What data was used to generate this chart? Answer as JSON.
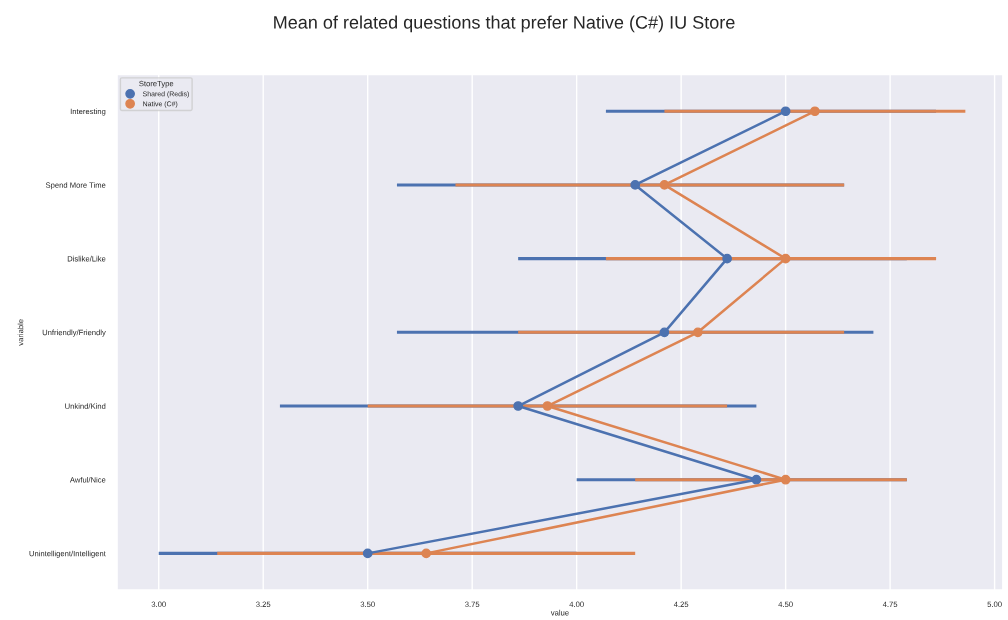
{
  "chart_data": {
    "type": "line",
    "orientation": "horizontal",
    "title": "Mean of related questions that prefer Native (C#) IU Store",
    "xlabel": "value",
    "ylabel": "variable",
    "legend_title": "StoreType",
    "legend": "top left",
    "grid": "x",
    "marker": "circle",
    "line_style": "solid",
    "categories": [
      "Interesting",
      "Spend More Time",
      "Dislike/Like",
      "Unfriendly/Friendly",
      "Unkind/Kind",
      "Awful/Nice",
      "Unintelligent/Intelligent"
    ],
    "xlim": [
      2.9,
      5.02
    ],
    "xticks": [
      {
        "value": 3.0,
        "label": "3.00"
      },
      {
        "value": 3.25,
        "label": "3.25"
      },
      {
        "value": 3.5,
        "label": "3.50"
      },
      {
        "value": 3.75,
        "label": "3.75"
      },
      {
        "value": 4.0,
        "label": "4.00"
      },
      {
        "value": 4.25,
        "label": "4.25"
      },
      {
        "value": 4.5,
        "label": "4.50"
      },
      {
        "value": 4.75,
        "label": "4.75"
      },
      {
        "value": 5.0,
        "label": "5.00"
      }
    ],
    "series": [
      {
        "name": "Shared (Redis)",
        "color": "#4c72b0",
        "values": [
          4.5,
          4.14,
          4.36,
          4.21,
          3.86,
          4.43,
          3.5
        ],
        "errors": [
          [
            4.07,
            4.86
          ],
          [
            3.57,
            4.64
          ],
          [
            3.86,
            4.79
          ],
          [
            3.57,
            4.71
          ],
          [
            3.29,
            4.43
          ],
          [
            4.0,
            4.79
          ],
          [
            3.0,
            4.0
          ]
        ]
      },
      {
        "name": "Native (C#)",
        "color": "#dd8452",
        "values": [
          4.57,
          4.21,
          4.5,
          4.29,
          3.93,
          4.5,
          3.64
        ],
        "errors": [
          [
            4.21,
            4.93
          ],
          [
            3.71,
            4.64
          ],
          [
            4.07,
            4.86
          ],
          [
            3.86,
            4.64
          ],
          [
            3.5,
            4.36
          ],
          [
            4.14,
            4.79
          ],
          [
            3.14,
            4.14
          ]
        ]
      }
    ]
  }
}
